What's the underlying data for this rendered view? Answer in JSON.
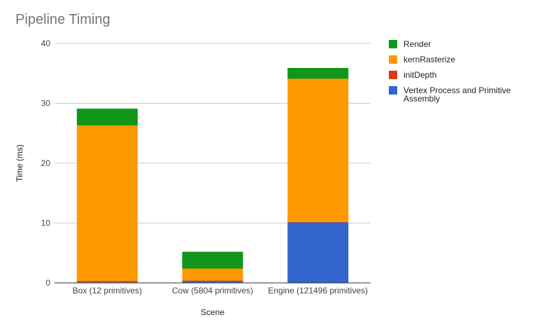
{
  "chart_data": {
    "type": "bar",
    "stacked": true,
    "title": "Pipeline Timing",
    "xlabel": "Scene",
    "ylabel": "Time (ms)",
    "ylim": [
      0,
      40
    ],
    "yticks": [
      0,
      10,
      20,
      30,
      40
    ],
    "grid": true,
    "legend_position": "right",
    "categories": [
      "Box (12 primitives)",
      "Cow (5804 primitives)",
      "Engine (121496 primitives)"
    ],
    "series": [
      {
        "name": "Vertex Process and Primitive Assembly",
        "color": "#3366cc",
        "values": [
          0.1,
          0.3,
          10.1
        ]
      },
      {
        "name": "initDepth",
        "color": "#dc3912",
        "values": [
          0.2,
          0.1,
          0.1
        ]
      },
      {
        "name": "kernRasterize",
        "color": "#ff9900",
        "values": [
          26.0,
          2.0,
          23.9
        ]
      },
      {
        "name": "Render",
        "color": "#109618",
        "values": [
          2.8,
          2.8,
          1.8
        ]
      }
    ]
  }
}
